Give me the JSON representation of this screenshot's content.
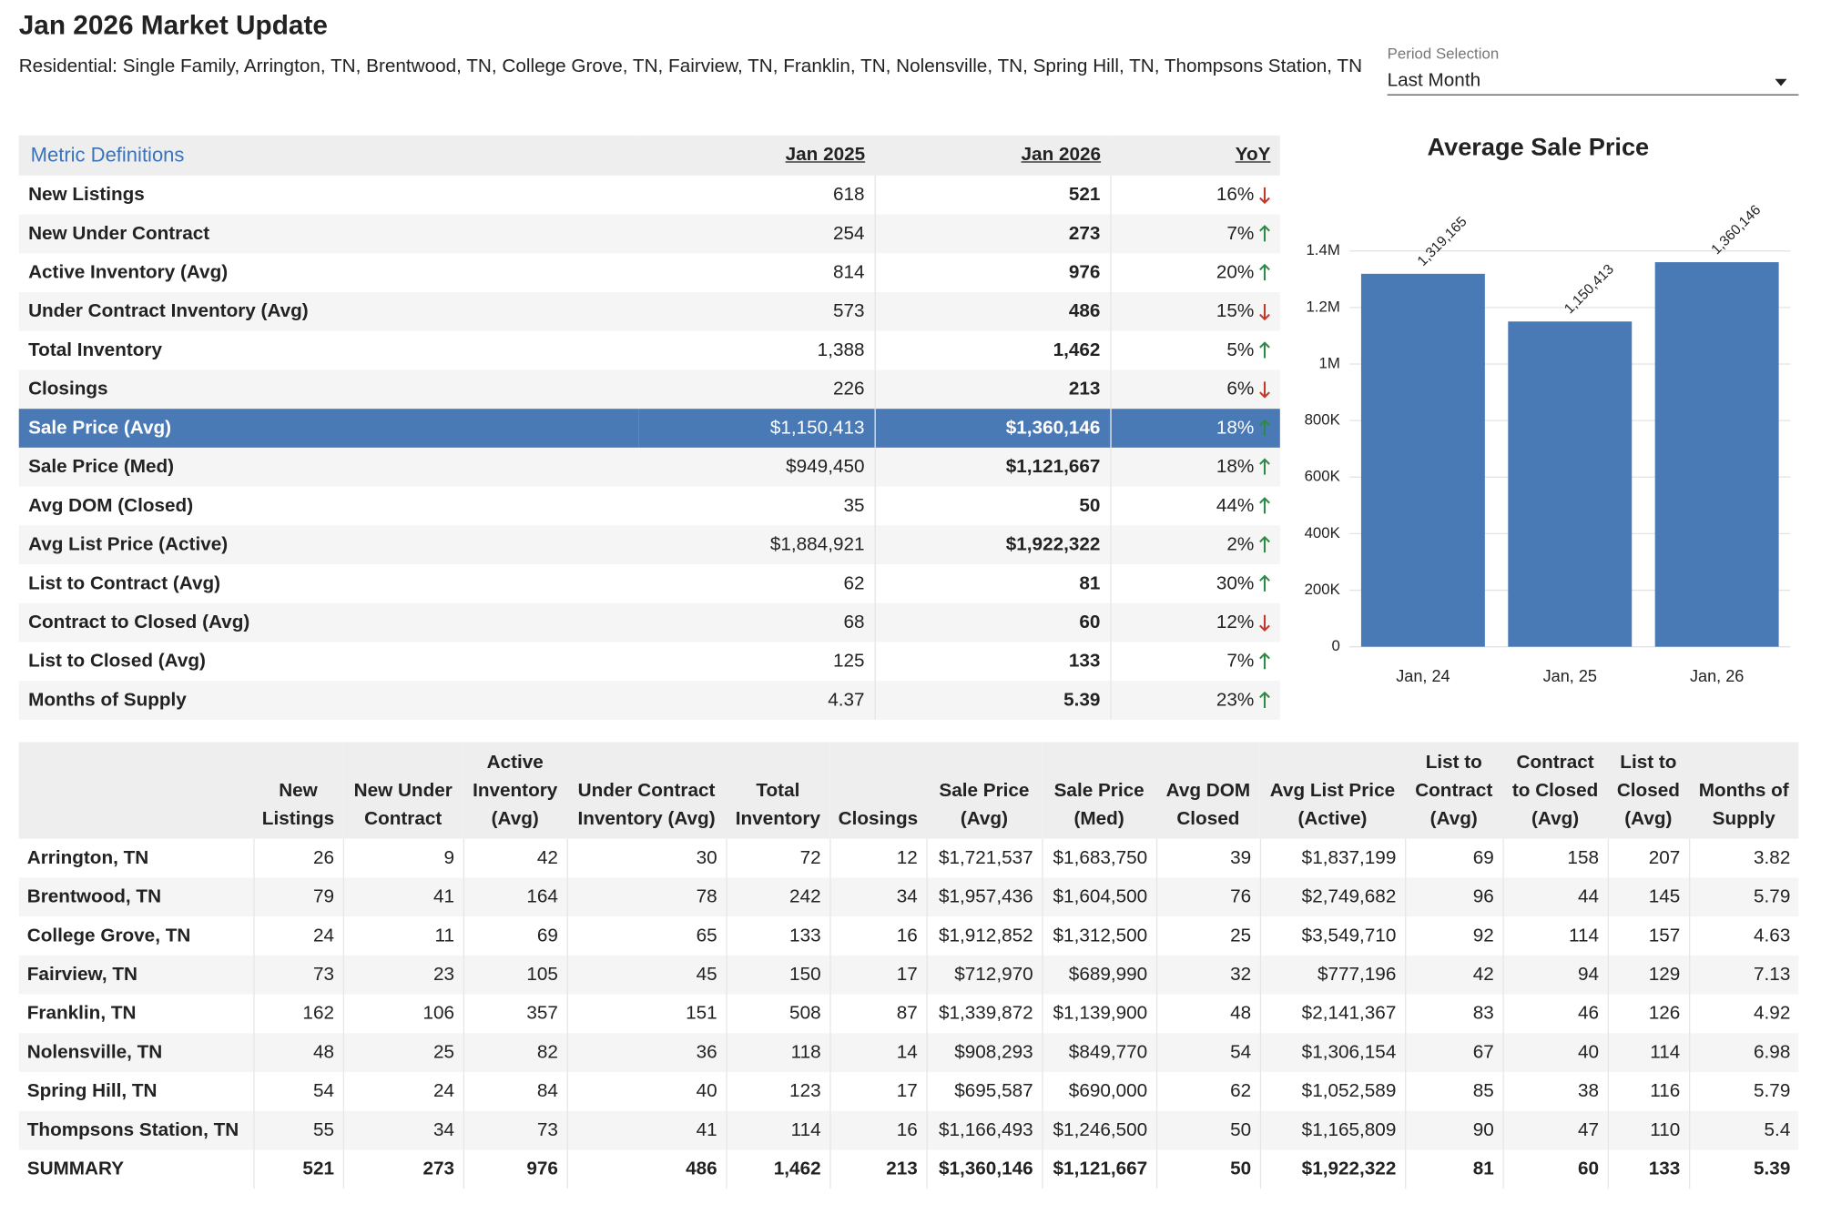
{
  "header": {
    "title": "Jan 2026 Market Update",
    "subtitle": "Residential: Single Family, Arrington, TN, Brentwood, TN, College Grove, TN, Fairview, TN, Franklin, TN, Nolensville, TN, Spring Hill, TN, Thompsons Station, TN"
  },
  "period_selection": {
    "label": "Period Selection",
    "value": "Last Month"
  },
  "metrics_table": {
    "columns": [
      "Metric Definitions",
      "Jan 2025",
      "Jan 2026",
      "YoY"
    ],
    "rows": [
      {
        "cells": [
          "New Listings",
          "618",
          "521",
          "16%"
        ],
        "trend": "down"
      },
      {
        "cells": [
          "New Under Contract",
          "254",
          "273",
          "7%"
        ],
        "trend": "up"
      },
      {
        "cells": [
          "Active Inventory (Avg)",
          "814",
          "976",
          "20%"
        ],
        "trend": "up"
      },
      {
        "cells": [
          "Under Contract Inventory (Avg)",
          "573",
          "486",
          "15%"
        ],
        "trend": "down"
      },
      {
        "cells": [
          "Total Inventory",
          "1,388",
          "1,462",
          "5%"
        ],
        "trend": "up"
      },
      {
        "cells": [
          "Closings",
          "226",
          "213",
          "6%"
        ],
        "trend": "down"
      },
      {
        "cells": [
          "Sale Price (Avg)",
          "$1,150,413",
          "$1,360,146",
          "18%"
        ],
        "trend": "up",
        "highlighted": true
      },
      {
        "cells": [
          "Sale Price (Med)",
          "$949,450",
          "$1,121,667",
          "18%"
        ],
        "trend": "up"
      },
      {
        "cells": [
          "Avg DOM (Closed)",
          "35",
          "50",
          "44%"
        ],
        "trend": "up"
      },
      {
        "cells": [
          "Avg List Price (Active)",
          "$1,884,921",
          "$1,922,322",
          "2%"
        ],
        "trend": "up"
      },
      {
        "cells": [
          "List to Contract (Avg)",
          "62",
          "81",
          "30%"
        ],
        "trend": "up"
      },
      {
        "cells": [
          "Contract to Closed (Avg)",
          "68",
          "60",
          "12%"
        ],
        "trend": "down"
      },
      {
        "cells": [
          "List to Closed (Avg)",
          "125",
          "133",
          "7%"
        ],
        "trend": "up"
      },
      {
        "cells": [
          "Months of Supply",
          "4.37",
          "5.39",
          "23%"
        ],
        "trend": "up"
      }
    ]
  },
  "chart_data": {
    "type": "bar",
    "title": "Average Sale Price",
    "categories": [
      "Jan, 24",
      "Jan, 25",
      "Jan, 26"
    ],
    "values": [
      1319165,
      1150413,
      1360146
    ],
    "value_labels": [
      "1,319,165",
      "1,150,413",
      "1,360,146"
    ],
    "color": "#4a7ab5",
    "ylim": [
      0,
      1400000
    ],
    "yticks": [
      0,
      {
        "value": 200000,
        "label": "200K"
      },
      {
        "value": 400000,
        "label": "400K"
      },
      {
        "value": 600000,
        "label": "600K"
      },
      {
        "value": 800000,
        "label": "800K"
      },
      {
        "value": 1000000,
        "label": "1M"
      },
      {
        "value": 1200000,
        "label": "1.2M"
      },
      {
        "value": 1400000,
        "label": "1.4M"
      }
    ],
    "grid": true
  },
  "region_table": {
    "columns": [
      "New Listings",
      "New Under Contract",
      "Active Inventory (Avg)",
      "Under Contract Inventory (Avg)",
      "Total Inventory",
      "Closings",
      "Sale Price (Avg)",
      "Sale Price (Med)",
      "Avg DOM Closed",
      "Avg List Price (Active)",
      "List to Contract (Avg)",
      "Contract to Closed (Avg)",
      "List to Closed (Avg)",
      "Months of Supply"
    ],
    "rows": [
      [
        "Arrington, TN",
        "26",
        "9",
        "42",
        "30",
        "72",
        "12",
        "$1,721,537",
        "$1,683,750",
        "39",
        "$1,837,199",
        "69",
        "158",
        "207",
        "3.82"
      ],
      [
        "Brentwood, TN",
        "79",
        "41",
        "164",
        "78",
        "242",
        "34",
        "$1,957,436",
        "$1,604,500",
        "76",
        "$2,749,682",
        "96",
        "44",
        "145",
        "5.79"
      ],
      [
        "College Grove, TN",
        "24",
        "11",
        "69",
        "65",
        "133",
        "16",
        "$1,912,852",
        "$1,312,500",
        "25",
        "$3,549,710",
        "92",
        "114",
        "157",
        "4.63"
      ],
      [
        "Fairview, TN",
        "73",
        "23",
        "105",
        "45",
        "150",
        "17",
        "$712,970",
        "$689,990",
        "32",
        "$777,196",
        "42",
        "94",
        "129",
        "7.13"
      ],
      [
        "Franklin, TN",
        "162",
        "106",
        "357",
        "151",
        "508",
        "87",
        "$1,339,872",
        "$1,139,900",
        "48",
        "$2,141,367",
        "83",
        "46",
        "126",
        "4.92"
      ],
      [
        "Nolensville, TN",
        "48",
        "25",
        "82",
        "36",
        "118",
        "14",
        "$908,293",
        "$849,770",
        "54",
        "$1,306,154",
        "67",
        "40",
        "114",
        "6.98"
      ],
      [
        "Spring Hill, TN",
        "54",
        "24",
        "84",
        "40",
        "123",
        "17",
        "$695,587",
        "$690,000",
        "62",
        "$1,052,589",
        "85",
        "38",
        "116",
        "5.79"
      ],
      [
        "Thompsons Station, TN",
        "55",
        "34",
        "73",
        "41",
        "114",
        "16",
        "$1,166,493",
        "$1,246,500",
        "50",
        "$1,165,809",
        "90",
        "47",
        "110",
        "5.4"
      ],
      [
        "SUMMARY",
        "521",
        "273",
        "976",
        "486",
        "1,462",
        "213",
        "$1,360,146",
        "$1,121,667",
        "50",
        "$1,922,322",
        "81",
        "60",
        "133",
        "5.39"
      ]
    ]
  }
}
